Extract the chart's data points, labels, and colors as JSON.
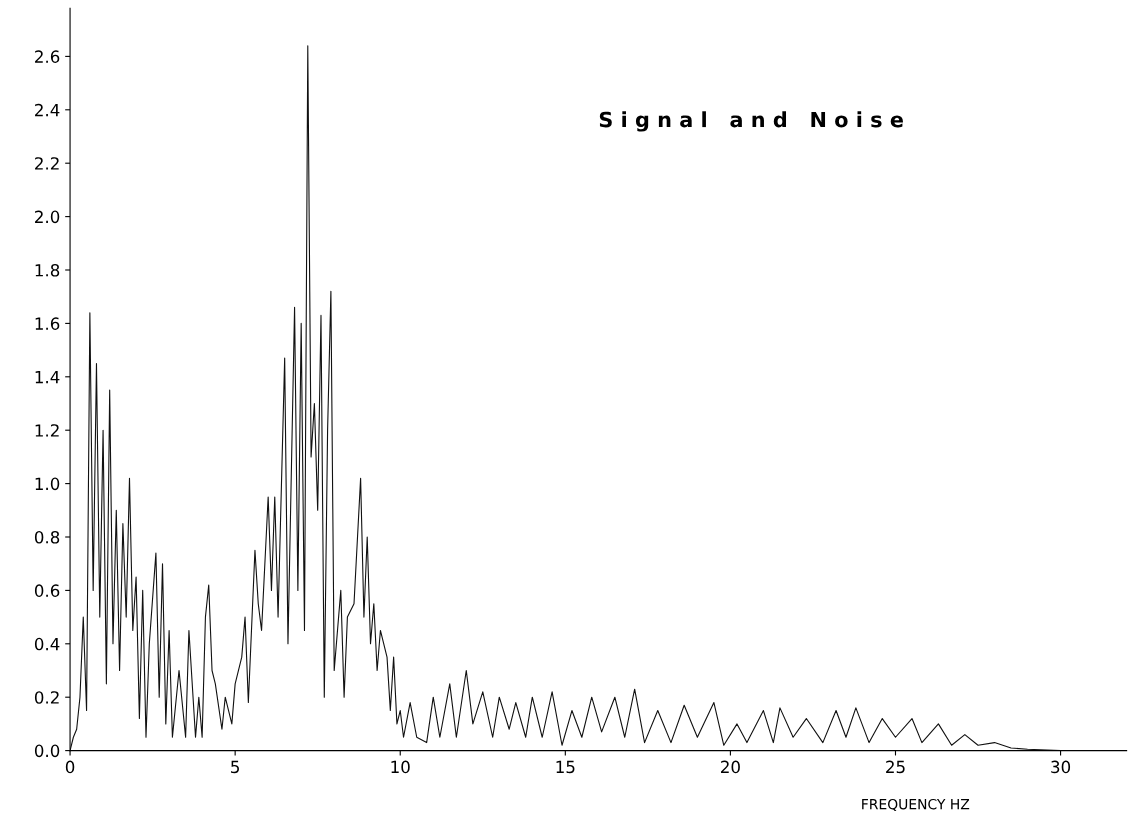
{
  "chart_data": {
    "type": "line",
    "title": "S i g n a l   a n d   N o i s e",
    "xlabel": "FREQUENCY HZ",
    "x": [
      0,
      0.1,
      0.2,
      0.3,
      0.4,
      0.5,
      0.6,
      0.7,
      0.8,
      0.9,
      1.0,
      1.1,
      1.2,
      1.3,
      1.4,
      1.5,
      1.6,
      1.7,
      1.8,
      1.9,
      2.0,
      2.1,
      2.2,
      2.3,
      2.4,
      2.6,
      2.7,
      2.8,
      2.9,
      3.0,
      3.1,
      3.3,
      3.5,
      3.6,
      3.8,
      3.9,
      4.0,
      4.1,
      4.2,
      4.3,
      4.4,
      4.6,
      4.7,
      4.9,
      5.0,
      5.2,
      5.3,
      5.4,
      5.6,
      5.7,
      5.8,
      6.0,
      6.1,
      6.2,
      6.3,
      6.5,
      6.6,
      6.8,
      6.9,
      7.0,
      7.1,
      7.2,
      7.3,
      7.4,
      7.5,
      7.6,
      7.7,
      7.8,
      7.9,
      8.0,
      8.2,
      8.3,
      8.4,
      8.6,
      8.8,
      8.9,
      9.0,
      9.1,
      9.2,
      9.3,
      9.4,
      9.6,
      9.7,
      9.8,
      9.9,
      10.0,
      10.1,
      10.3,
      10.5,
      10.8,
      11.0,
      11.2,
      11.5,
      11.7,
      12.0,
      12.2,
      12.5,
      12.8,
      13.0,
      13.3,
      13.5,
      13.8,
      14.0,
      14.3,
      14.6,
      14.9,
      15.2,
      15.5,
      15.8,
      16.1,
      16.5,
      16.8,
      17.1,
      17.4,
      17.8,
      18.2,
      18.6,
      19.0,
      19.5,
      19.8,
      20.2,
      20.5,
      21.0,
      21.3,
      21.5,
      21.9,
      22.3,
      22.8,
      23.2,
      23.5,
      23.8,
      24.2,
      24.6,
      25.0,
      25.5,
      25.8,
      26.3,
      26.7,
      27.1,
      27.5,
      28.0,
      28.5,
      29.0,
      30.0,
      32.0
    ],
    "series": [
      {
        "color": "#111111",
        "values": [
          0,
          0.05,
          0.08,
          0.2,
          0.5,
          0.15,
          1.64,
          0.6,
          1.45,
          0.5,
          1.2,
          0.25,
          1.35,
          0.4,
          0.9,
          0.3,
          0.85,
          0.5,
          1.02,
          0.45,
          0.65,
          0.12,
          0.6,
          0.05,
          0.4,
          0.74,
          0.2,
          0.7,
          0.1,
          0.45,
          0.05,
          0.3,
          0.05,
          0.45,
          0.05,
          0.2,
          0.05,
          0.5,
          0.62,
          0.3,
          0.25,
          0.08,
          0.2,
          0.1,
          0.25,
          0.35,
          0.5,
          0.18,
          0.75,
          0.55,
          0.45,
          0.95,
          0.6,
          0.95,
          0.5,
          1.47,
          0.4,
          1.66,
          0.6,
          1.6,
          0.45,
          2.64,
          1.1,
          1.3,
          0.9,
          1.63,
          0.2,
          1.2,
          1.72,
          0.3,
          0.6,
          0.2,
          0.5,
          0.55,
          1.02,
          0.5,
          0.8,
          0.4,
          0.55,
          0.3,
          0.45,
          0.35,
          0.15,
          0.35,
          0.1,
          0.15,
          0.05,
          0.18,
          0.05,
          0.03,
          0.2,
          0.05,
          0.25,
          0.05,
          0.3,
          0.1,
          0.22,
          0.05,
          0.2,
          0.08,
          0.18,
          0.05,
          0.2,
          0.05,
          0.22,
          0.02,
          0.15,
          0.05,
          0.2,
          0.07,
          0.2,
          0.05,
          0.23,
          0.03,
          0.15,
          0.03,
          0.17,
          0.05,
          0.18,
          0.02,
          0.1,
          0.03,
          0.15,
          0.03,
          0.16,
          0.05,
          0.12,
          0.03,
          0.15,
          0.05,
          0.16,
          0.03,
          0.12,
          0.05,
          0.12,
          0.03,
          0.1,
          0.02,
          0.06,
          0.02,
          0.03,
          0.01,
          0.005,
          0,
          0
        ]
      }
    ],
    "xlim": [
      0,
      32
    ],
    "ylim": [
      0,
      2.78
    ],
    "xticks": [
      0,
      5,
      10,
      15,
      20,
      25,
      30
    ],
    "yticks": [
      {
        "value": 0,
        "label": "0.0"
      },
      {
        "value": 0.2,
        "label": "0.2"
      },
      {
        "value": 0.4,
        "label": "0.4"
      },
      {
        "value": 0.6,
        "label": "0.6"
      },
      {
        "value": 0.8,
        "label": "0.8"
      },
      {
        "value": 1.0,
        "label": "1.0"
      },
      {
        "value": 1.2,
        "label": "1.2"
      },
      {
        "value": 1.4,
        "label": "1.4"
      },
      {
        "value": 1.6,
        "label": "1.6"
      },
      {
        "value": 1.8,
        "label": "1.8"
      },
      {
        "value": 2.0,
        "label": "2.0"
      },
      {
        "value": 2.2,
        "label": "2.2"
      },
      {
        "value": 2.4,
        "label": "2.4"
      },
      {
        "value": 2.6,
        "label": "2.6"
      }
    ],
    "grid": false,
    "marker": "none",
    "line_style": "solid"
  }
}
